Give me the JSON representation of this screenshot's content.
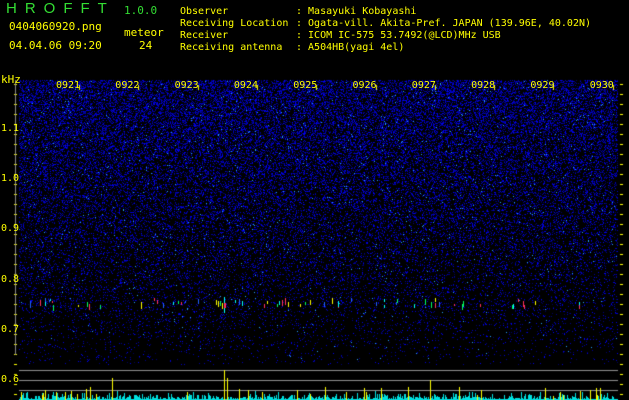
{
  "header": {
    "app_title": "HROFFT",
    "app_version": "1.0.0",
    "file_name": "0404060920.png",
    "datetime": "04.04.06 09:20",
    "meteor_label": "meteor",
    "meteor_count": "24"
  },
  "info": [
    {
      "label": "Observer",
      "value": ": Masayuki Kobayashi"
    },
    {
      "label": "Receiving Location",
      "value": ": Ogata-vill. Akita-Pref. JAPAN (139.96E, 40.02N)"
    },
    {
      "label": "Receiver",
      "value": ": ICOM IC-575 53.7492(@LCD)MHz USB"
    },
    {
      "label": "Receiving antenna",
      "value": ": A504HB(yagi 4el)"
    }
  ],
  "spectrogram": {
    "y_unit": "kHz",
    "y_ticks": [
      "1.1",
      "1.0",
      "0.9",
      "0.8",
      "0.7",
      "0.6"
    ],
    "time_labels": [
      "0921",
      "0922",
      "0923",
      "0924",
      "0925",
      "0926",
      "0927",
      "0928",
      "0929",
      "0930"
    ],
    "colors": {
      "background": "#000000",
      "noise": "#2020c0",
      "text": "#ffff00",
      "histogram": "#00e0e0",
      "histogram_peak": "#ffff00",
      "title": "#33dd33"
    }
  }
}
